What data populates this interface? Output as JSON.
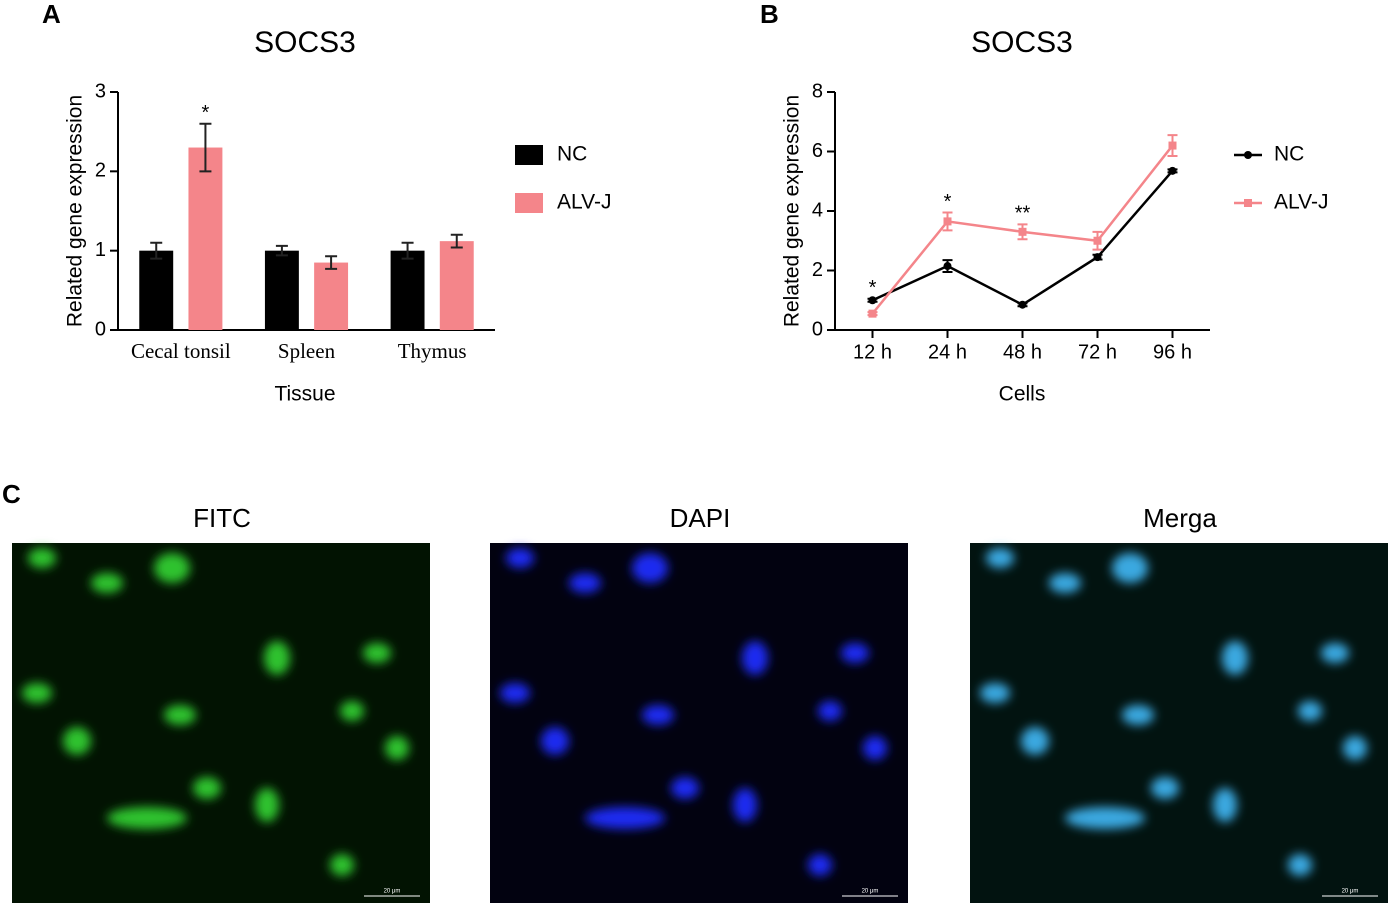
{
  "panels": [
    "A",
    "B",
    "C"
  ],
  "chart_data": [
    {
      "type": "bar",
      "title": "SOCS3",
      "x_label": "Tissue",
      "y_label": "Related gene expression",
      "categories": [
        "Cecal tonsil",
        "Spleen",
        "Thymus"
      ],
      "series": [
        {
          "name": "NC",
          "color": "#000000",
          "values": [
            1.0,
            1.0,
            1.0
          ],
          "errors": [
            0.1,
            0.06,
            0.1
          ]
        },
        {
          "name": "ALV-J",
          "color": "#f4858a",
          "values": [
            2.3,
            0.85,
            1.12
          ],
          "errors": [
            0.3,
            0.08,
            0.08
          ]
        }
      ],
      "ylim": [
        0,
        3
      ],
      "yticks": [
        0,
        1,
        2,
        3
      ],
      "annotations": [
        {
          "text": "*",
          "x": "Cecal tonsil"
        }
      ]
    },
    {
      "type": "line",
      "title": "SOCS3",
      "x_label": "Cells",
      "y_label": "Related gene expression",
      "categories": [
        "12 h",
        "24 h",
        "48 h",
        "72 h",
        "96 h"
      ],
      "series": [
        {
          "name": "NC",
          "color": "#000000",
          "marker": "circle",
          "values": [
            1.0,
            2.15,
            0.85,
            2.45,
            5.35
          ],
          "errors": [
            0.05,
            0.2,
            0.05,
            0.08,
            0.05
          ]
        },
        {
          "name": "ALV-J",
          "color": "#f4858a",
          "marker": "square",
          "values": [
            0.55,
            3.65,
            3.3,
            3.0,
            6.2
          ],
          "errors": [
            0.05,
            0.3,
            0.25,
            0.3,
            0.35
          ]
        }
      ],
      "ylim": [
        0,
        8
      ],
      "yticks": [
        0,
        2,
        4,
        6,
        8
      ],
      "annotations": [
        {
          "text": "*",
          "x": "12 h"
        },
        {
          "text": "*",
          "x": "24 h"
        },
        {
          "text": "**",
          "x": "48 h"
        }
      ]
    }
  ],
  "images": {
    "titles": [
      "FITC",
      "DAPI",
      "Merga"
    ],
    "scale_bar": "20 μm"
  }
}
